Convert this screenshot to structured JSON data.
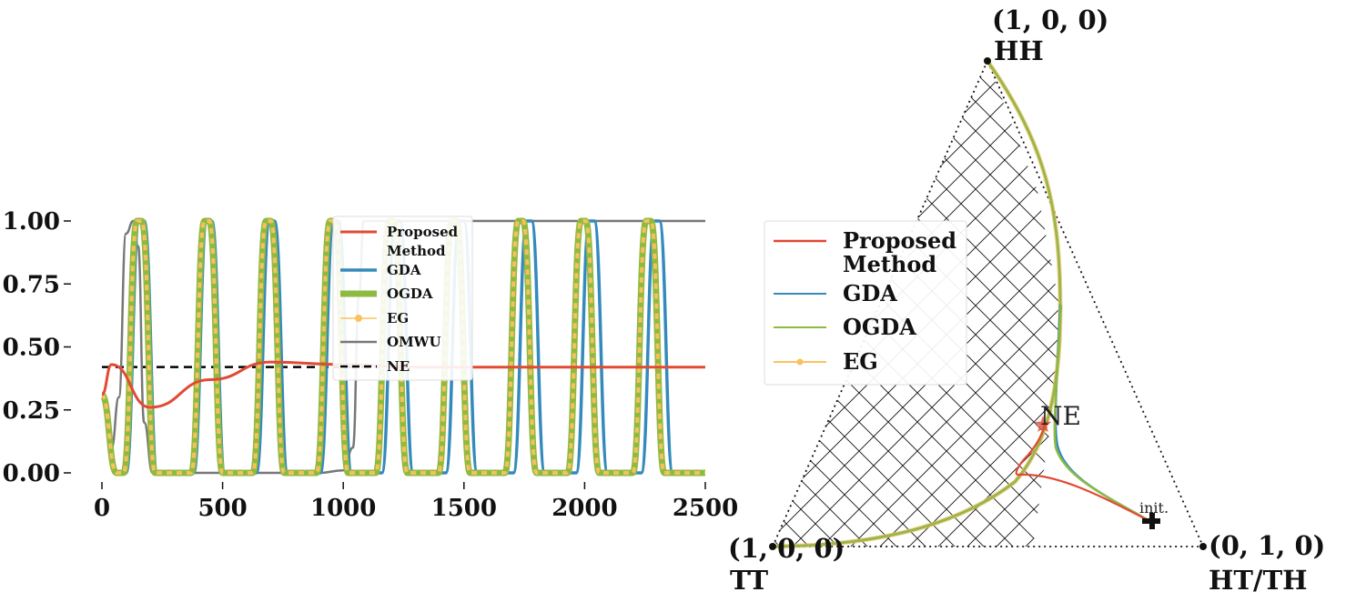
{
  "colors": {
    "proposed": "#e24a33",
    "gda": "#348abd",
    "ogda": "#8eba42",
    "eg": "#fbc15e",
    "omwu": "#777777",
    "ne": "#000000"
  },
  "chart_data": [
    {
      "type": "line",
      "title": "",
      "xlabel": "",
      "ylabel": "",
      "xlim": [
        0,
        2500
      ],
      "ylim": [
        0,
        1
      ],
      "xticks": [
        "0",
        "500",
        "1000",
        "1500",
        "2000",
        "2500"
      ],
      "yticks": [
        "0.00",
        "0.25",
        "0.50",
        "0.75",
        "1.00"
      ],
      "grid": false,
      "legend_position": "upper-right",
      "series": [
        {
          "name": "Proposed Method",
          "legend": [
            "Proposed",
            "Method"
          ],
          "key": "proposed",
          "ne": 0.42
        },
        {
          "name": "GDA",
          "legend": [
            "GDA"
          ],
          "key": "gda",
          "peaks": [
            165,
            445,
            705,
            970,
            1225,
            1490,
            1770,
            2030,
            2300
          ]
        },
        {
          "name": "OGDA",
          "legend": [
            "OGDA"
          ],
          "key": "ogda",
          "peaks": [
            155,
            435,
            690,
            955,
            1200,
            1460,
            1735,
            1995,
            2265
          ]
        },
        {
          "name": "EG",
          "legend": [
            "EG"
          ],
          "key": "eg",
          "peaks": [
            155,
            435,
            690,
            955,
            1200,
            1460,
            1735,
            1995,
            2265
          ]
        },
        {
          "name": "OMWU",
          "legend": [
            "OMWU"
          ],
          "key": "omwu",
          "initial": 0.31
        },
        {
          "name": "NE",
          "legend": [
            "NE"
          ],
          "key": "ne",
          "value": 0.42
        }
      ]
    },
    {
      "type": "line",
      "title": "",
      "simplex": true,
      "vertices": [
        {
          "coord": "(1, 0, 0)",
          "name": "HH"
        },
        {
          "coord": "(1, 0, 0)",
          "name": "TT"
        },
        {
          "coord": "(0, 1, 0)",
          "name": "HT/TH"
        }
      ],
      "annotations": {
        "ne": "NE",
        "init": "init."
      },
      "legend_position": "upper-left",
      "series": [
        {
          "name": "Proposed Method",
          "legend": [
            "Proposed",
            "Method"
          ],
          "key": "proposed"
        },
        {
          "name": "GDA",
          "legend": [
            "GDA"
          ],
          "key": "gda"
        },
        {
          "name": "OGDA",
          "legend": [
            "OGDA"
          ],
          "key": "ogda"
        },
        {
          "name": "EG",
          "legend": [
            "EG"
          ],
          "key": "eg"
        }
      ]
    }
  ]
}
